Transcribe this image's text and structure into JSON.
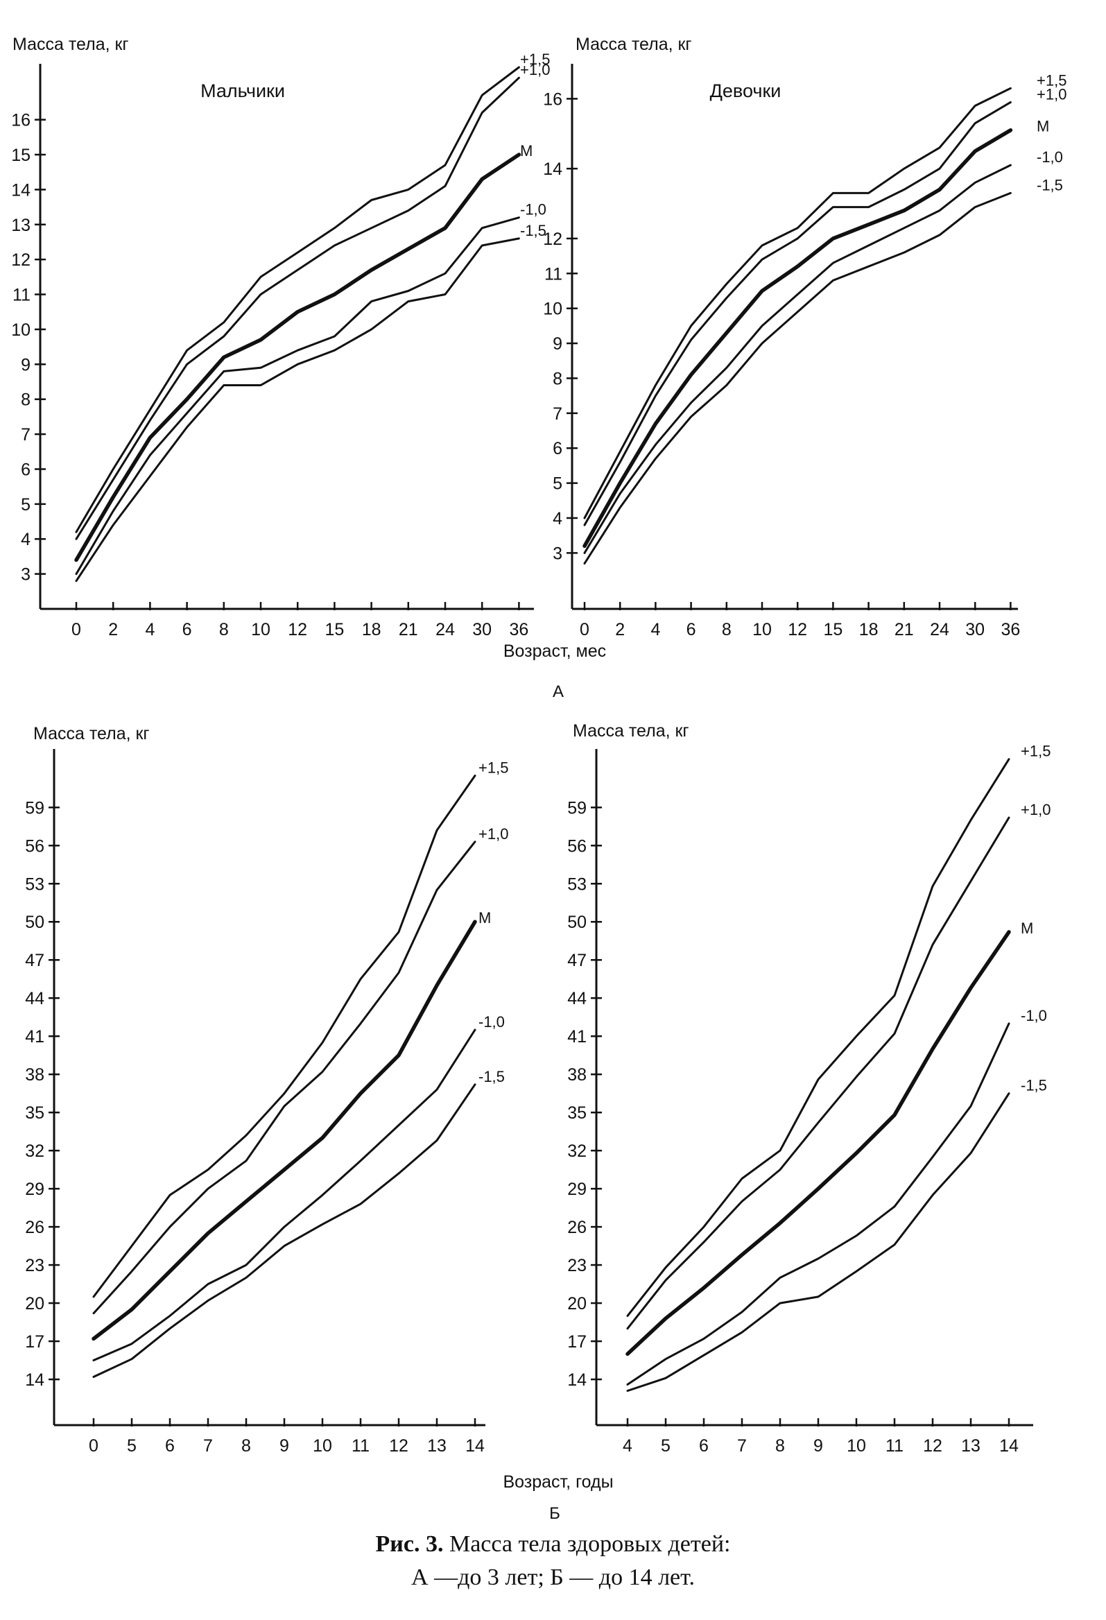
{
  "caption": {
    "line1_bold": "Рис. 3.",
    "line1_rest": " Масса тела здоровых детей:",
    "line2": "А —до 3 лет; Б — до 14 лет."
  },
  "chart_data": [
    {
      "type": "line",
      "part": "А",
      "panel": "Мальчики",
      "ylabel": "Масса тела, кг",
      "xlabel": "Возраст, мес",
      "categories": [
        "0",
        "2",
        "4",
        "6",
        "8",
        "10",
        "12",
        "15",
        "18",
        "21",
        "24",
        "30",
        "36"
      ],
      "yticks": [
        3,
        4,
        5,
        6,
        7,
        8,
        9,
        10,
        11,
        12,
        13,
        14,
        15,
        16
      ],
      "ylim": [
        2.0,
        17.6
      ],
      "series": [
        {
          "name": "+1,5",
          "values": [
            4.2,
            6.0,
            7.7,
            9.4,
            10.2,
            11.5,
            12.2,
            12.9,
            13.7,
            14.0,
            14.7,
            16.7,
            17.5
          ]
        },
        {
          "name": "+1,0",
          "values": [
            4.0,
            5.7,
            7.4,
            9.0,
            9.8,
            11.0,
            11.7,
            12.4,
            12.9,
            13.4,
            14.1,
            16.2,
            17.2
          ]
        },
        {
          "name": "М",
          "values": [
            3.4,
            5.2,
            6.9,
            8.0,
            9.2,
            9.7,
            10.5,
            11.0,
            11.7,
            12.3,
            12.9,
            14.3,
            15.0
          ]
        },
        {
          "name": "-1,0",
          "values": [
            3.0,
            4.8,
            6.4,
            7.6,
            8.8,
            8.9,
            9.4,
            9.8,
            10.8,
            11.1,
            11.6,
            12.9,
            13.2
          ]
        },
        {
          "name": "-1,5",
          "values": [
            2.8,
            4.4,
            5.8,
            7.2,
            8.4,
            8.4,
            9.0,
            9.4,
            10.0,
            10.8,
            11.0,
            12.4,
            12.6
          ]
        }
      ]
    },
    {
      "type": "line",
      "part": "А",
      "panel": "Девочки",
      "ylabel": "Масса тела, кг",
      "xlabel": "Возраст, мес",
      "categories": [
        "0",
        "2",
        "4",
        "6",
        "8",
        "10",
        "12",
        "15",
        "18",
        "21",
        "24",
        "30",
        "36"
      ],
      "yticks": [
        3,
        4,
        5,
        6,
        7,
        8,
        9,
        10,
        11,
        12,
        14,
        16
      ],
      "ylim": [
        1.4,
        17.0
      ],
      "series": [
        {
          "name": "+1,5",
          "values": [
            4.0,
            5.9,
            7.8,
            9.5,
            10.7,
            11.8,
            12.3,
            13.3,
            13.3,
            14.0,
            14.6,
            15.8,
            16.3
          ]
        },
        {
          "name": "+1,0",
          "values": [
            3.8,
            5.6,
            7.5,
            9.1,
            10.3,
            11.4,
            12.0,
            12.9,
            12.9,
            13.4,
            14.0,
            15.3,
            15.9
          ]
        },
        {
          "name": "М",
          "values": [
            3.2,
            5.0,
            6.7,
            8.1,
            9.3,
            10.5,
            11.2,
            12.0,
            12.4,
            12.8,
            13.4,
            14.5,
            15.1
          ]
        },
        {
          "name": "-1,0",
          "values": [
            3.0,
            4.7,
            6.1,
            7.3,
            8.3,
            9.5,
            10.4,
            11.3,
            11.8,
            12.3,
            12.8,
            13.6,
            14.1
          ]
        },
        {
          "name": "-1,5",
          "values": [
            2.7,
            4.3,
            5.7,
            6.9,
            7.8,
            9.0,
            9.9,
            10.8,
            11.2,
            11.6,
            12.1,
            12.9,
            13.3
          ]
        }
      ]
    },
    {
      "type": "line",
      "part": "Б",
      "panel": "",
      "ylabel": "Масса тела, кг",
      "xlabel": "Возраст,   годы",
      "categories": [
        "0",
        "5",
        "6",
        "7",
        "8",
        "9",
        "10",
        "11",
        "12",
        "13",
        "14"
      ],
      "yticks": [
        14,
        17,
        20,
        23,
        26,
        29,
        32,
        35,
        38,
        41,
        44,
        47,
        50,
        53,
        56,
        59
      ],
      "ylim": [
        10.4,
        63.6
      ],
      "series": [
        {
          "name": "+1,5",
          "values": [
            20.5,
            24.5,
            28.5,
            30.5,
            33.2,
            36.5,
            40.5,
            45.5,
            49.2,
            57.2,
            61.5
          ]
        },
        {
          "name": "+1,0",
          "values": [
            19.2,
            22.5,
            26.0,
            29.0,
            31.2,
            35.5,
            38.2,
            42.0,
            46.0,
            52.5,
            56.3
          ]
        },
        {
          "name": "М",
          "values": [
            17.2,
            19.5,
            22.5,
            25.5,
            28.0,
            30.5,
            33.0,
            36.5,
            39.5,
            45.0,
            50.0
          ]
        },
        {
          "name": "-1,0",
          "values": [
            15.5,
            16.8,
            19.0,
            21.5,
            23.0,
            26.0,
            28.5,
            31.2,
            34.0,
            36.8,
            41.5
          ]
        },
        {
          "name": "-1,5",
          "values": [
            14.2,
            15.6,
            18.0,
            20.2,
            22.0,
            24.5,
            26.2,
            27.8,
            30.2,
            32.8,
            37.2
          ]
        }
      ]
    },
    {
      "type": "line",
      "part": "Б",
      "panel": "",
      "ylabel": "Масса тела, кг",
      "xlabel": "Возраст,   годы",
      "categories": [
        "4",
        "5",
        "6",
        "7",
        "8",
        "9",
        "10",
        "11",
        "12",
        "13",
        "14"
      ],
      "yticks": [
        14,
        17,
        20,
        23,
        26,
        29,
        32,
        35,
        38,
        41,
        44,
        47,
        50,
        53,
        56,
        59
      ],
      "ylim": [
        10.4,
        63.6
      ],
      "series": [
        {
          "name": "+1,5",
          "values": [
            19.0,
            22.8,
            26.0,
            29.8,
            32.0,
            37.6,
            41.0,
            44.2,
            52.8,
            58.0,
            62.8
          ]
        },
        {
          "name": "+1,0",
          "values": [
            18.0,
            21.8,
            24.8,
            28.0,
            30.5,
            34.2,
            37.8,
            41.2,
            48.2,
            53.2,
            58.2
          ]
        },
        {
          "name": "М",
          "values": [
            16.0,
            18.8,
            21.2,
            23.8,
            26.3,
            29.0,
            31.8,
            34.8,
            40.0,
            44.8,
            49.2
          ]
        },
        {
          "name": "-1,0",
          "values": [
            13.6,
            15.6,
            17.2,
            19.3,
            22.0,
            23.5,
            25.3,
            27.6,
            31.5,
            35.5,
            42.0
          ]
        },
        {
          "name": "-1,5",
          "values": [
            13.1,
            14.1,
            15.9,
            17.7,
            20.0,
            20.5,
            22.5,
            24.6,
            28.5,
            31.8,
            36.5
          ]
        }
      ]
    }
  ]
}
